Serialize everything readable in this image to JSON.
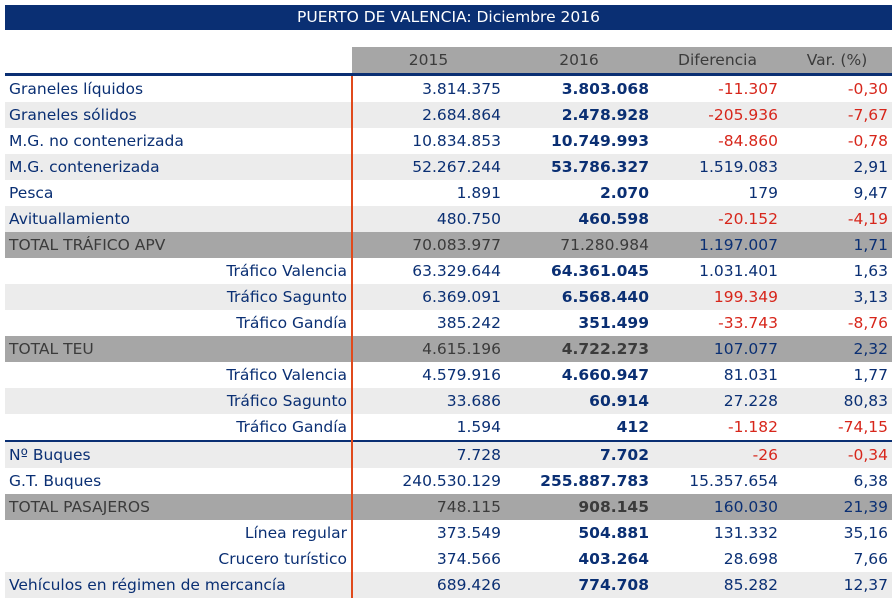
{
  "title": "PUERTO DE VALENCIA: Diciembre 2016",
  "headers": [
    "",
    "2015",
    "2016",
    "Diferencia",
    "Var. (%)"
  ],
  "rows": [
    {
      "label": "Graneles líquidos",
      "kind": "main",
      "y2015": "3.814.375",
      "y2016": "3.803.068",
      "diff": "-11.307",
      "var": "-0,30",
      "diff_red": true,
      "var_red": true
    },
    {
      "label": "Graneles sólidos",
      "kind": "main",
      "y2015": "2.684.864",
      "y2016": "2.478.928",
      "diff": "-205.936",
      "var": "-7,67",
      "diff_red": true,
      "var_red": true
    },
    {
      "label": "M.G. no contenerizada",
      "kind": "main",
      "y2015": "10.834.853",
      "y2016": "10.749.993",
      "diff": "-84.860",
      "var": "-0,78",
      "diff_red": true,
      "var_red": true
    },
    {
      "label": "M.G. contenerizada",
      "kind": "main",
      "y2015": "52.267.244",
      "y2016": "53.786.327",
      "diff": "1.519.083",
      "var": "2,91"
    },
    {
      "label": "Pesca",
      "kind": "main",
      "y2015": "1.891",
      "y2016": "2.070",
      "diff": "179",
      "var": "9,47"
    },
    {
      "label": "Avituallamiento",
      "kind": "main",
      "y2015": "480.750",
      "y2016": "460.598",
      "diff": "-20.152",
      "var": "-4,19",
      "diff_red": true,
      "var_red": true
    },
    {
      "label": "TOTAL TRÁFICO APV",
      "kind": "total",
      "y2015": "70.083.977",
      "y2016": "71.280.984",
      "diff": "1.197.007",
      "var": "1,71",
      "not_bold": true
    },
    {
      "label": "Tráfico Valencia",
      "kind": "sub",
      "y2015": "63.329.644",
      "y2016": "64.361.045",
      "diff": "1.031.401",
      "var": "1,63"
    },
    {
      "label": "Tráfico Sagunto",
      "kind": "sub",
      "y2015": "6.369.091",
      "y2016": "6.568.440",
      "diff": "199.349",
      "var": "3,13",
      "diff_red": true
    },
    {
      "label": "Tráfico Gandía",
      "kind": "sub",
      "y2015": "385.242",
      "y2016": "351.499",
      "diff": "-33.743",
      "var": "-8,76",
      "diff_red": true,
      "var_red": true
    },
    {
      "label": "TOTAL TEU",
      "kind": "total",
      "y2015": "4.615.196",
      "y2016": "4.722.273",
      "diff": "107.077",
      "var": "2,32"
    },
    {
      "label": "Tráfico Valencia",
      "kind": "sub",
      "y2015": "4.579.916",
      "y2016": "4.660.947",
      "diff": "81.031",
      "var": "1,77"
    },
    {
      "label": "Tráfico Sagunto",
      "kind": "sub",
      "y2015": "33.686",
      "y2016": "60.914",
      "diff": "27.228",
      "var": "80,83"
    },
    {
      "label": "Tráfico Gandía",
      "kind": "sub",
      "y2015": "1.594",
      "y2016": "412",
      "diff": "-1.182",
      "var": "-74,15",
      "diff_red": true,
      "var_red": true
    },
    {
      "label": "Nº Buques",
      "kind": "main",
      "y2015": "7.728",
      "y2016": "7.702",
      "diff": "-26",
      "var": "-0,34",
      "diff_red": true,
      "var_red": true
    },
    {
      "label": "G.T. Buques",
      "kind": "main",
      "y2015": "240.530.129",
      "y2016": "255.887.783",
      "diff": "15.357.654",
      "var": "6,38"
    },
    {
      "label": "TOTAL PASAJEROS",
      "kind": "total",
      "y2015": "748.115",
      "y2016": "908.145",
      "diff": "160.030",
      "var": "21,39"
    },
    {
      "label": "Línea regular",
      "kind": "sub",
      "y2015": "373.549",
      "y2016": "504.881",
      "diff": "131.332",
      "var": "35,16"
    },
    {
      "label": "Crucero turístico",
      "kind": "sub",
      "y2015": "374.566",
      "y2016": "403.264",
      "diff": "28.698",
      "var": "7,66"
    },
    {
      "label": "Vehículos en régimen de mercancía",
      "kind": "main",
      "y2015": "689.426",
      "y2016": "774.708",
      "diff": "85.282",
      "var": "12,37"
    }
  ]
}
